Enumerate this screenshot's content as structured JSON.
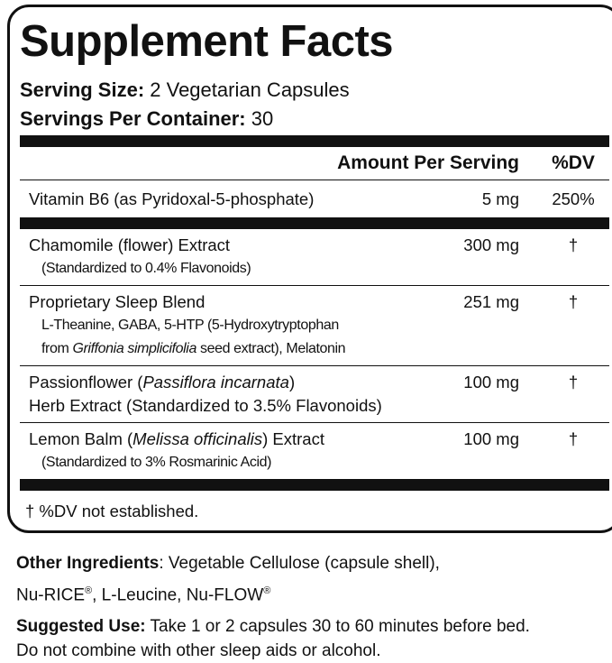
{
  "title": "Supplement Facts",
  "serving_size": [
    {
      "text": "Serving Size:",
      "bold": true
    },
    " 2 Vegetarian Capsules"
  ],
  "servings_per_container": [
    {
      "text": "Servings Per Container:",
      "bold": true
    },
    " 30"
  ],
  "header": {
    "amount": "Amount Per Serving",
    "dv": "%DV"
  },
  "rows": [
    {
      "lines": [
        [
          "Vitamin B6 (as Pyridoxal-5-phosphate)"
        ]
      ],
      "amount": "5 mg",
      "dv": "250%"
    },
    {
      "lines": [
        [
          "Chamomile (flower) Extract"
        ]
      ],
      "sub": [
        [
          "(Standardized to 0.4% Flavonoids)"
        ]
      ],
      "amount": "300 mg",
      "dv": "†"
    },
    {
      "lines": [
        [
          "Proprietary Sleep Blend"
        ]
      ],
      "sub": [
        [
          "L-Theanine, GABA, 5-HTP (5-Hydroxytryptophan"
        ],
        [
          "from ",
          {
            "text": "Griffonia simplicifolia",
            "italic": true
          },
          " seed extract), Melatonin"
        ]
      ],
      "amount": "251 mg",
      "dv": "†"
    },
    {
      "lines": [
        [
          "Passionflower (",
          {
            "text": "Passiflora incarnata",
            "italic": true
          },
          ")"
        ],
        [
          "Herb Extract (Standardized to 3.5% Flavonoids)"
        ]
      ],
      "amount": "100 mg",
      "dv": "†"
    },
    {
      "lines": [
        [
          "Lemon Balm (",
          {
            "text": "Melissa officinalis",
            "italic": true
          },
          ") Extract"
        ]
      ],
      "sub": [
        [
          "(Standardized to 3% Rosmarinic Acid)"
        ]
      ],
      "amount": "100 mg",
      "dv": "†"
    }
  ],
  "footnote": "† %DV not established.",
  "other_ingredients": [
    [
      {
        "text": "Other Ingredients",
        "bold": true
      },
      ": Vegetable Cellulose (capsule shell),"
    ],
    [
      "Nu-RICE",
      {
        "text": "®",
        "sup": true
      },
      ", L-Leucine, Nu-FLOW",
      {
        "text": "®",
        "sup": true
      }
    ]
  ],
  "suggested_use": [
    [
      {
        "text": "Suggested Use:",
        "bold": true
      },
      " Take 1 or 2 capsules 30 to 60 minutes before bed."
    ],
    [
      "Do not combine with other sleep aids or alcohol."
    ]
  ]
}
